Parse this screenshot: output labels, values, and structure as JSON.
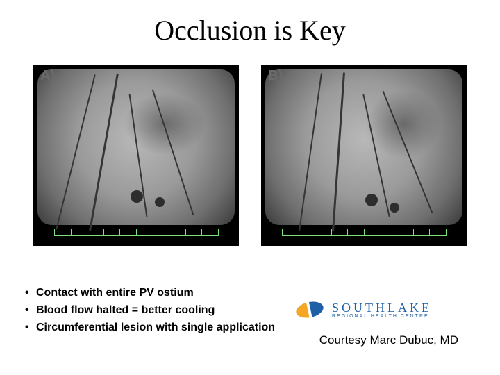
{
  "title": "Occlusion is Key",
  "panels": {
    "a": {
      "label": "A)"
    },
    "b": {
      "label": "B)"
    }
  },
  "ruler": {
    "color": "#7fe07f",
    "tick_count": 11
  },
  "bullets": [
    "Contact with entire PV ostium",
    "Blood flow halted = better cooling",
    "Circumferential lesion with single application"
  ],
  "logo": {
    "name": "SOUTHLAKE",
    "subtitle": "REGIONAL HEALTH CENTRE",
    "primary_color": "#1e5fa8",
    "accent_color": "#f5a623"
  },
  "credit": "Courtesy Marc Dubuc, MD",
  "colors": {
    "background": "#ffffff",
    "text": "#000000",
    "image_bg": "#000000"
  },
  "typography": {
    "title_fontsize_pt": 30,
    "title_family": "serif",
    "bullet_fontsize_pt": 12,
    "bullet_weight": "bold",
    "credit_fontsize_pt": 13
  }
}
